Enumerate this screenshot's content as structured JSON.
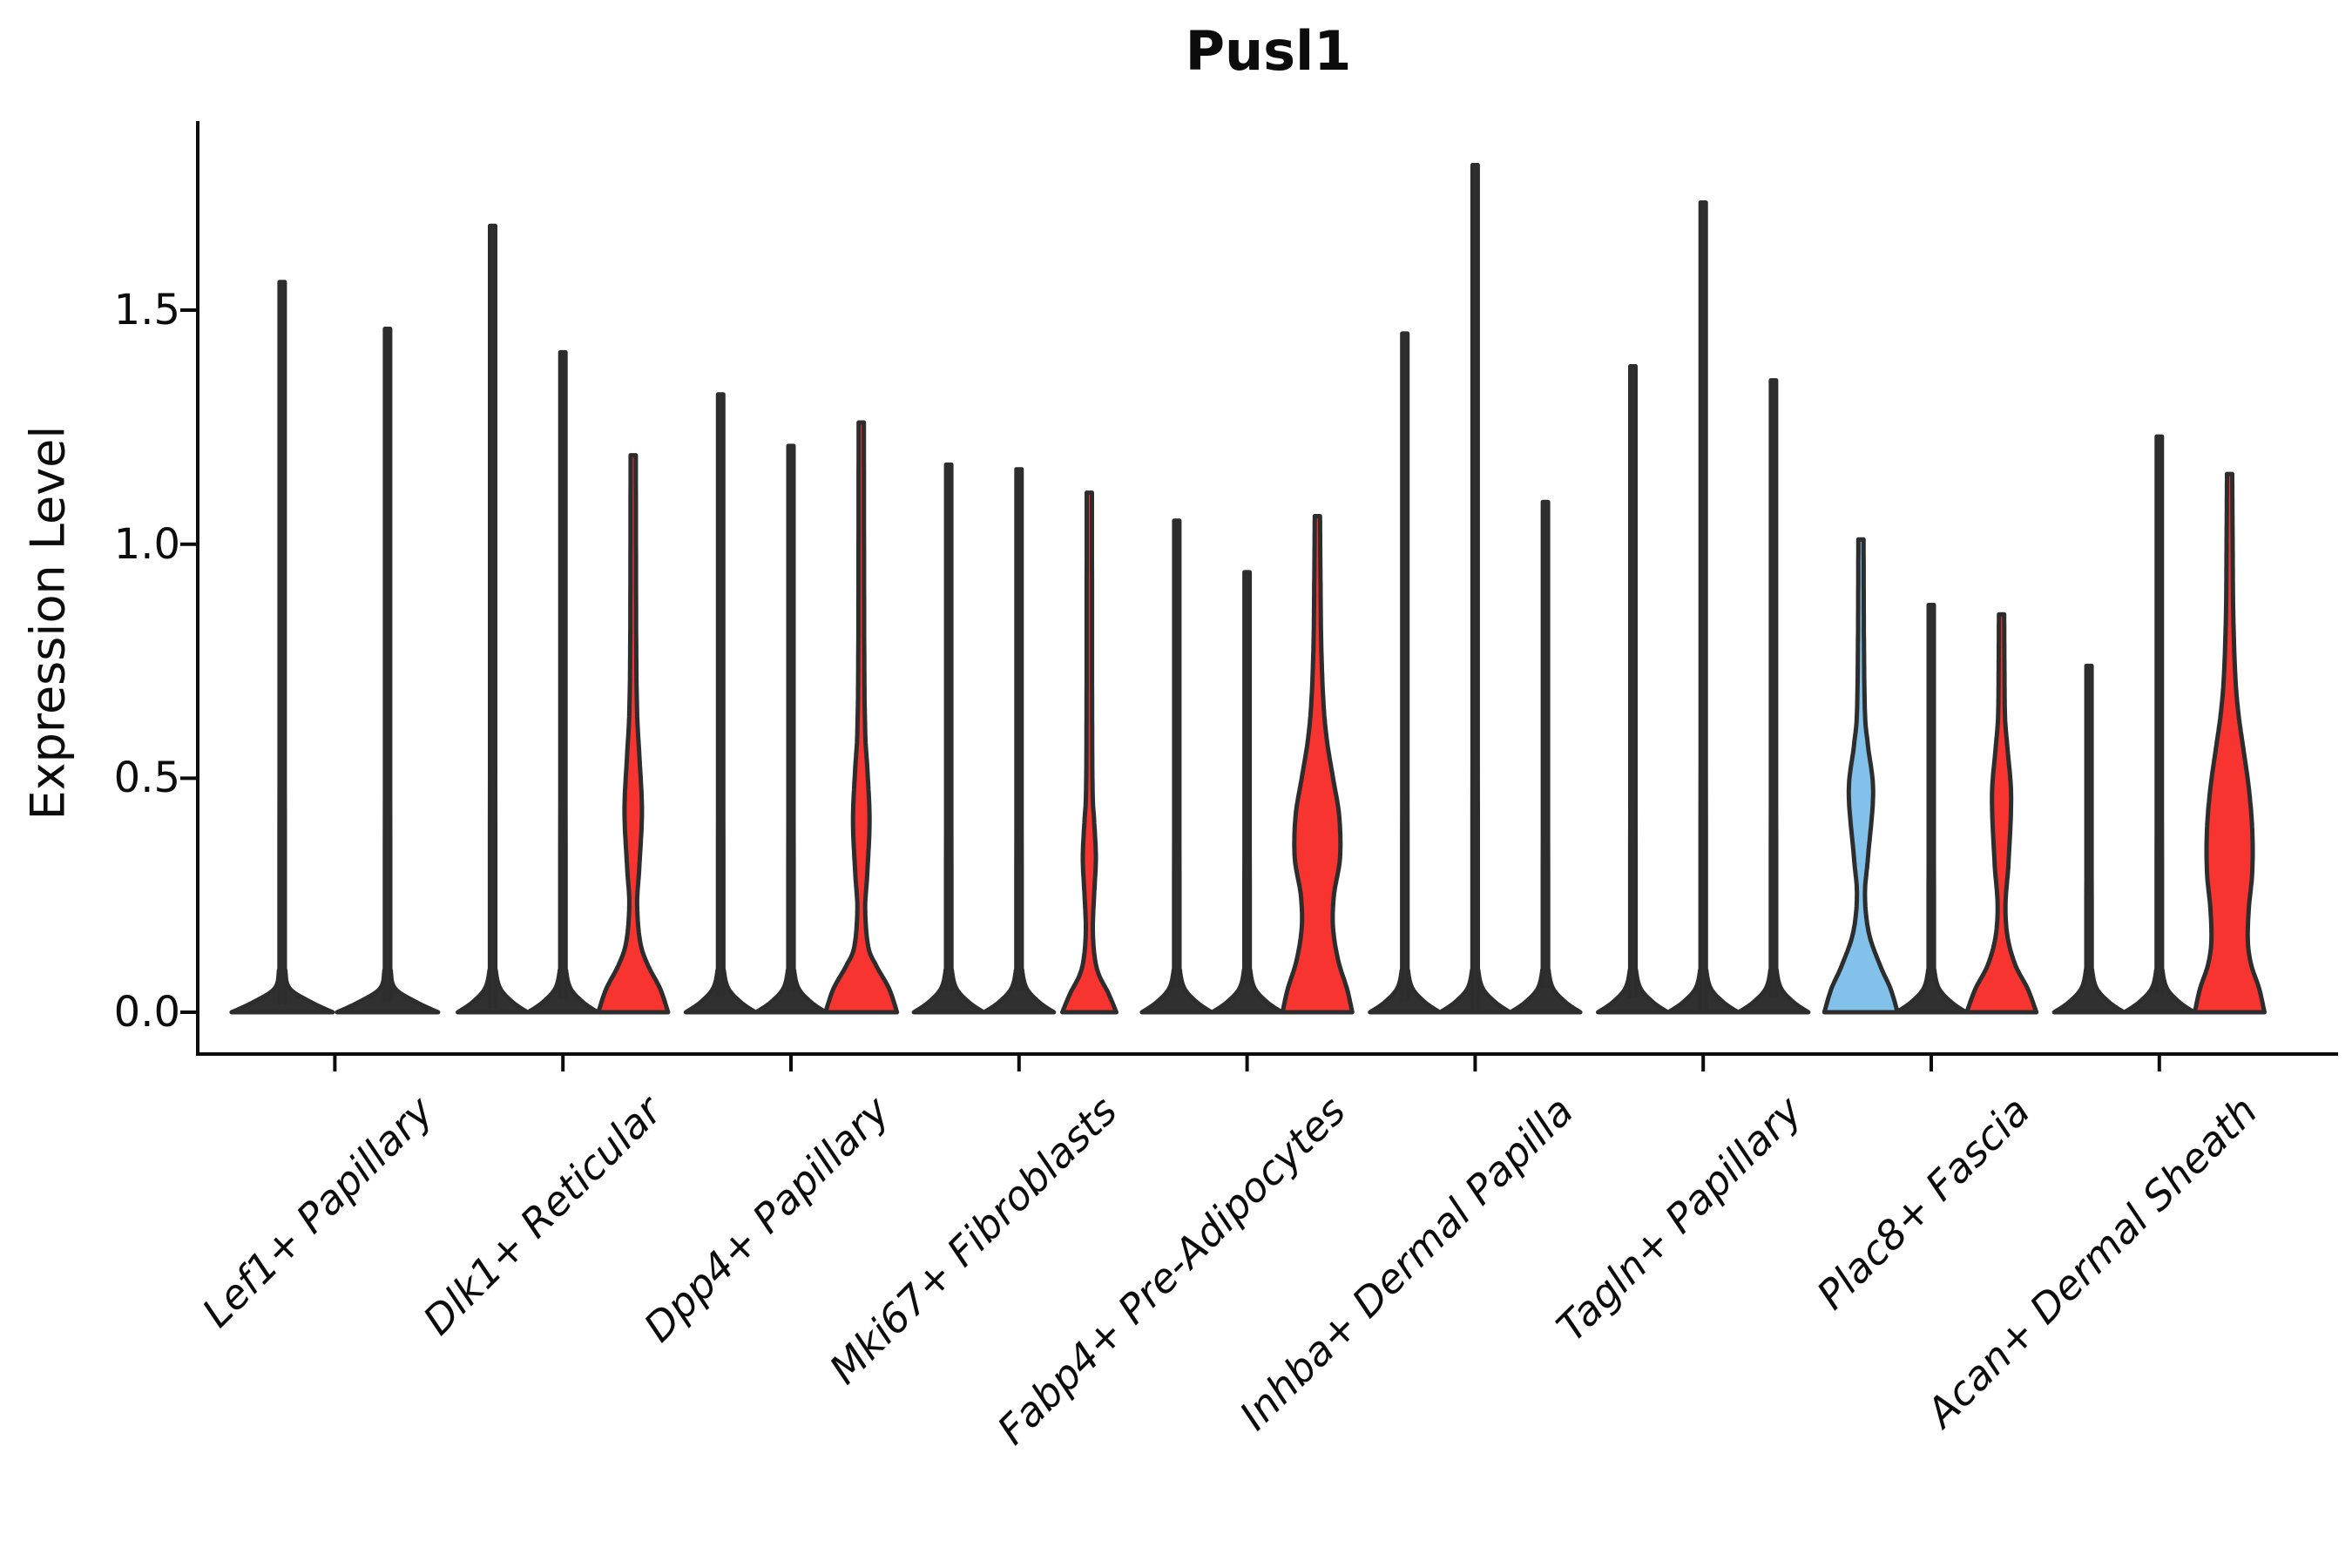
{
  "title": "Pusl1",
  "ylabel": "Expression Level",
  "colors": {
    "red": "#F73430",
    "blue": "#82C2EA",
    "outline": "#2D2D2D",
    "thin_fill": "#303030",
    "axis": "#0c0c0c",
    "background": "#ffffff"
  },
  "chart_data": {
    "type": "violin",
    "title": "Pusl1",
    "xlabel": "",
    "ylabel": "Expression Level",
    "ylim": [
      -0.09,
      1.9
    ],
    "yticks": [
      {
        "value": 0.0,
        "label": "0.0"
      },
      {
        "value": 0.5,
        "label": "0.5"
      },
      {
        "value": 1.0,
        "label": "1.0"
      },
      {
        "value": 1.5,
        "label": "1.5"
      }
    ],
    "categories": [
      "Lef1+ Papillary",
      "Dlk1+ Reticular",
      "Dpp4+ Papillary",
      "Mki67+ Fibroblasts",
      "Fabp4+ Pre-Adipocytes",
      "Inhba+ Dermal Papilla",
      "Tagln+ Papillary",
      "Plac8+ Fascia",
      "Acan+ Dermal Sheath"
    ],
    "legend": "none",
    "grid": false,
    "groups": [
      {
        "category": "Lef1+ Papillary",
        "violins": [
          {
            "max": 1.56,
            "fill": "none"
          },
          {
            "max": 1.46,
            "fill": "none"
          }
        ]
      },
      {
        "category": "Dlk1+ Reticular",
        "violins": [
          {
            "max": 1.68,
            "fill": "none"
          },
          {
            "max": 1.41,
            "fill": "none"
          },
          {
            "max": 1.19,
            "fill": "red",
            "bulge_center": 0.43,
            "profile": [
              [
                0,
                40
              ],
              [
                0.05,
                31
              ],
              [
                0.1,
                17
              ],
              [
                0.15,
                8
              ],
              [
                0.23,
                4.5
              ],
              [
                0.31,
                7
              ],
              [
                0.43,
                10
              ],
              [
                0.55,
                7
              ],
              [
                0.64,
                4.5
              ],
              [
                0.8,
                3.4
              ],
              [
                1.19,
                3
              ]
            ]
          }
        ]
      },
      {
        "category": "Dpp4+ Papillary",
        "violins": [
          {
            "max": 1.32,
            "fill": "none"
          },
          {
            "max": 1.21,
            "fill": "none"
          },
          {
            "max": 1.26,
            "fill": "red",
            "bulge_center": 0.41,
            "profile": [
              [
                0,
                41
              ],
              [
                0.05,
                32
              ],
              [
                0.1,
                17
              ],
              [
                0.14,
                8
              ],
              [
                0.22,
                4.5
              ],
              [
                0.3,
                7
              ],
              [
                0.41,
                9.5
              ],
              [
                0.52,
                7
              ],
              [
                0.6,
                4.5
              ],
              [
                0.78,
                3.4
              ],
              [
                1.26,
                3
              ]
            ]
          }
        ]
      },
      {
        "category": "Mki67+ Fibroblasts",
        "violins": [
          {
            "max": 1.17,
            "fill": "none"
          },
          {
            "max": 1.16,
            "fill": "none"
          },
          {
            "max": 1.11,
            "fill": "red",
            "bulge_center": 0.33,
            "profile": [
              [
                0,
                31
              ],
              [
                0.04,
                22
              ],
              [
                0.08,
                11
              ],
              [
                0.12,
                6
              ],
              [
                0.18,
                4
              ],
              [
                0.25,
                5.5
              ],
              [
                0.33,
                7.5
              ],
              [
                0.41,
                5.5
              ],
              [
                0.47,
                3.8
              ],
              [
                0.65,
                3.2
              ],
              [
                1.11,
                3
              ]
            ]
          }
        ]
      },
      {
        "category": "Fabp4+ Pre-Adipocytes",
        "violins": [
          {
            "max": 1.05,
            "fill": "none"
          },
          {
            "max": 0.94,
            "fill": "none"
          },
          {
            "max": 1.06,
            "fill": "red",
            "bulge_center": 0.37,
            "profile": [
              [
                0,
                40
              ],
              [
                0.05,
                34
              ],
              [
                0.11,
                24
              ],
              [
                0.18,
                18
              ],
              [
                0.25,
                19
              ],
              [
                0.33,
                26
              ],
              [
                0.42,
                25
              ],
              [
                0.5,
                18
              ],
              [
                0.58,
                11
              ],
              [
                0.66,
                7
              ],
              [
                0.78,
                4.5
              ],
              [
                0.92,
                3.6
              ],
              [
                1.06,
                3
              ]
            ]
          }
        ]
      },
      {
        "category": "Inhba+ Dermal Papilla",
        "violins": [
          {
            "max": 1.45,
            "fill": "none"
          },
          {
            "max": 1.81,
            "fill": "none"
          },
          {
            "max": 1.09,
            "fill": "none"
          }
        ]
      },
      {
        "category": "Tagln+ Papillary",
        "violins": [
          {
            "max": 1.38,
            "fill": "none"
          },
          {
            "max": 1.73,
            "fill": "none"
          },
          {
            "max": 1.35,
            "fill": "none"
          }
        ]
      },
      {
        "category": "Plac8+ Fascia",
        "violins": [
          {
            "max": 1.01,
            "fill": "blue",
            "bulge_center": 0.47,
            "profile": [
              [
                0,
                42
              ],
              [
                0.05,
                34
              ],
              [
                0.1,
                22
              ],
              [
                0.17,
                9
              ],
              [
                0.25,
                4.6
              ],
              [
                0.33,
                8
              ],
              [
                0.47,
                14
              ],
              [
                0.57,
                8
              ],
              [
                0.64,
                4.6
              ],
              [
                0.8,
                3.4
              ],
              [
                1.01,
                3
              ]
            ]
          },
          {
            "max": 0.87,
            "fill": "none"
          },
          {
            "max": 0.85,
            "fill": "red",
            "bulge_center": 0.46,
            "profile": [
              [
                0,
                40
              ],
              [
                0.05,
                30
              ],
              [
                0.1,
                16
              ],
              [
                0.16,
                7
              ],
              [
                0.23,
                4.5
              ],
              [
                0.32,
                8
              ],
              [
                0.46,
                11
              ],
              [
                0.56,
                7
              ],
              [
                0.63,
                4
              ],
              [
                0.74,
                3.3
              ],
              [
                0.85,
                3
              ]
            ]
          }
        ]
      },
      {
        "category": "Acan+ Dermal Sheath",
        "violins": [
          {
            "max": 0.74,
            "fill": "none"
          },
          {
            "max": 1.23,
            "fill": "none"
          },
          {
            "max": 1.15,
            "fill": "red",
            "bulge_center": 0.39,
            "profile": [
              [
                0,
                40
              ],
              [
                0.05,
                34
              ],
              [
                0.1,
                25
              ],
              [
                0.15,
                21
              ],
              [
                0.22,
                22
              ],
              [
                0.3,
                26
              ],
              [
                0.39,
                26
              ],
              [
                0.48,
                22
              ],
              [
                0.56,
                16
              ],
              [
                0.64,
                10
              ],
              [
                0.72,
                6.5
              ],
              [
                0.85,
                4.2
              ],
              [
                1.0,
                3.5
              ],
              [
                1.15,
                3
              ]
            ]
          }
        ]
      }
    ]
  }
}
